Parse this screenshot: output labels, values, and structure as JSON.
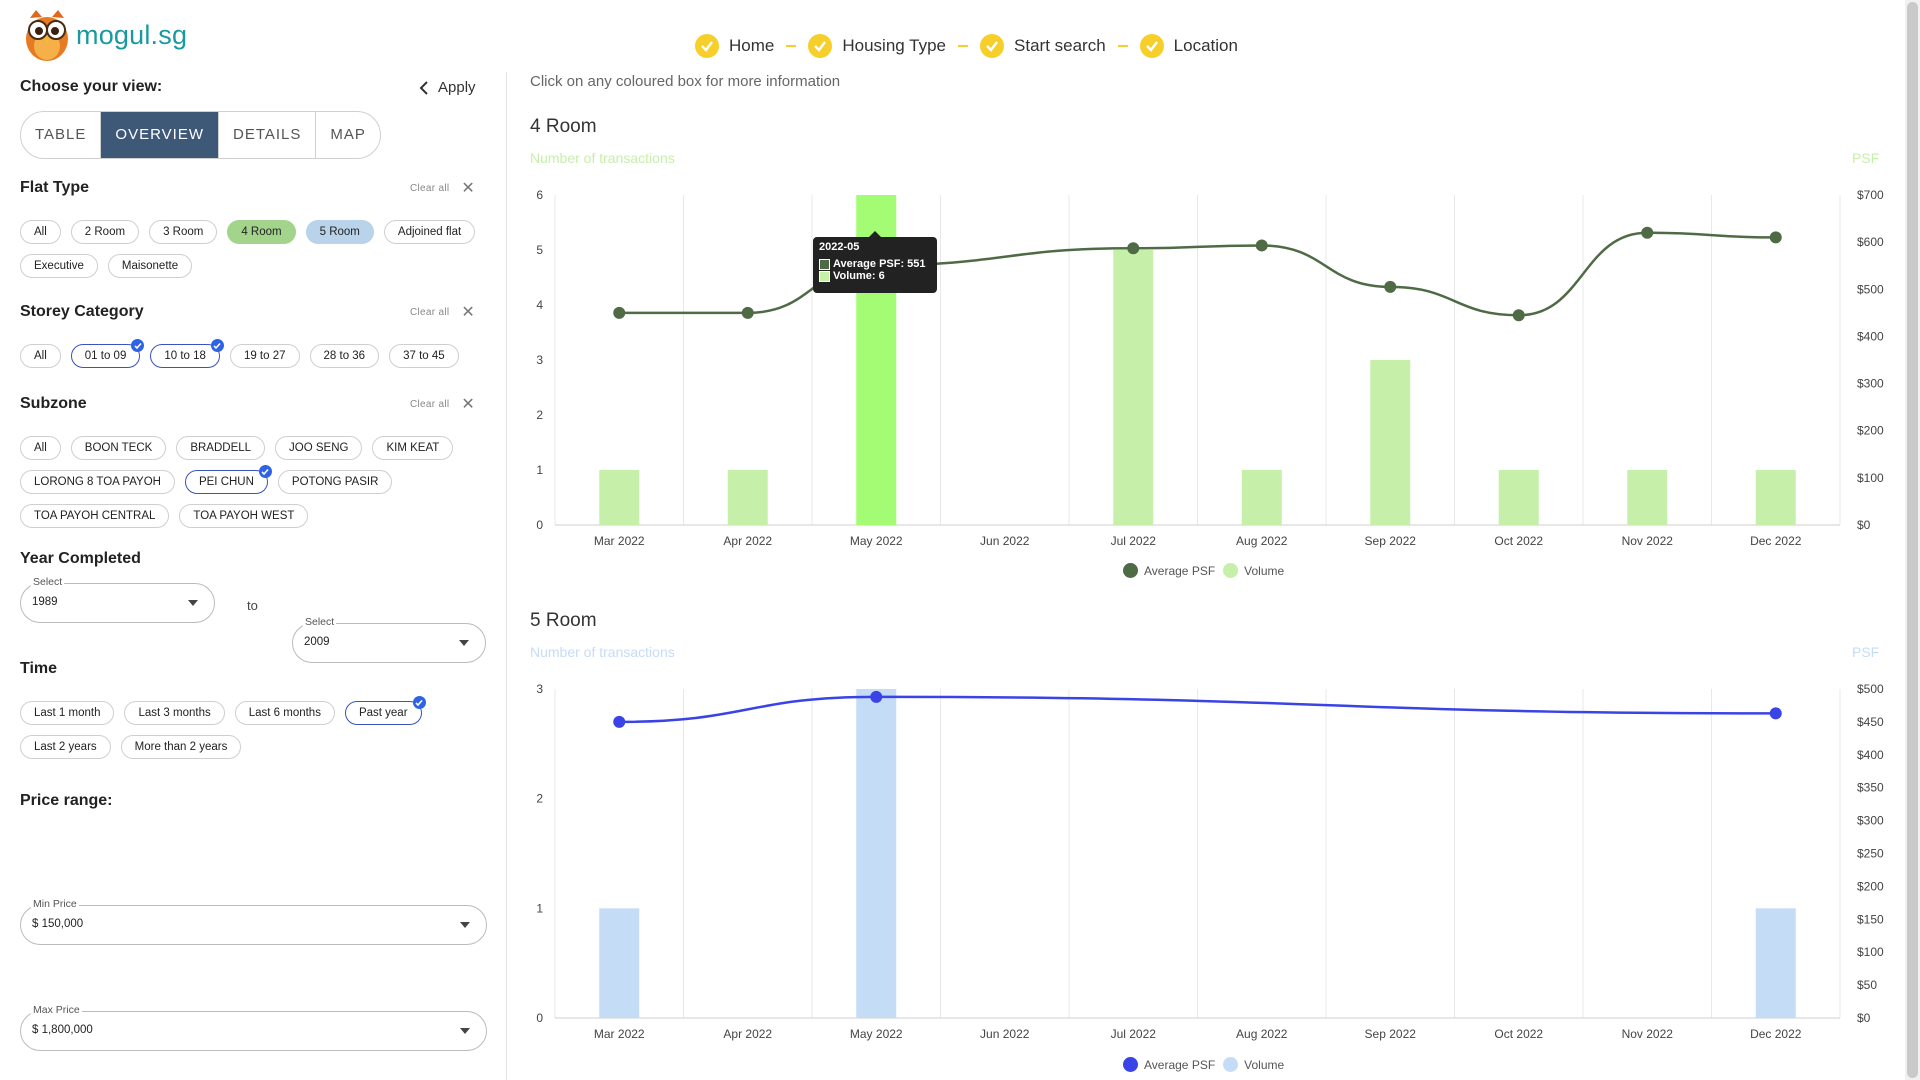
{
  "brand": {
    "name": "mogul.sg"
  },
  "steps": [
    "Home",
    "Housing Type",
    "Start search",
    "Location"
  ],
  "sidebar": {
    "choose_view": "Choose your view:",
    "apply": "Apply",
    "view_tabs": [
      "TABLE",
      "OVERVIEW",
      "DETAILS",
      "MAP"
    ],
    "clear_all": "Clear all",
    "flat_type": {
      "title": "Flat Type",
      "chips": [
        "All",
        "2 Room",
        "3 Room",
        "4 Room",
        "5 Room",
        "Adjoined flat",
        "Executive",
        "Maisonette"
      ]
    },
    "storey": {
      "title": "Storey Category",
      "chips": [
        "All",
        "01 to 09",
        "10 to 18",
        "19 to 27",
        "28 to 36",
        "37 to 45"
      ]
    },
    "subzone": {
      "title": "Subzone",
      "chips": [
        "All",
        "BOON TECK",
        "BRADDELL",
        "JOO SENG",
        "KIM KEAT",
        "LORONG 8 TOA PAYOH",
        "PEI CHUN",
        "POTONG PASIR",
        "TOA PAYOH CENTRAL",
        "TOA PAYOH WEST"
      ]
    },
    "year_completed": {
      "title": "Year Completed",
      "select_label": "Select",
      "from": "1989",
      "to_word": "to",
      "to": "2009"
    },
    "time": {
      "title": "Time",
      "chips": [
        "Last 1 month",
        "Last 3 months",
        "Last 6 months",
        "Past year",
        "Last 2 years",
        "More than 2 years"
      ]
    },
    "price": {
      "title": "Price range:",
      "min_label": "Min Price",
      "min": "$ 150,000",
      "max_label": "Max Price",
      "max": "$ 1,800,000"
    }
  },
  "main": {
    "hint": "Click on any coloured box for more information",
    "legend_psf": "Average PSF",
    "legend_volume": "Volume",
    "left_axis_caption": "Number of transactions",
    "right_axis_caption": "PSF",
    "tooltip": {
      "title": "2022-05",
      "psf_line": "Average PSF: 551",
      "vol_line": "Volume: 6"
    }
  },
  "colors": {
    "accent_yellow": "#f7cf2a",
    "room4_line": "#4f6b45",
    "room4_bar": "#c6efaa",
    "room4_bar_hover": "#a4fb74",
    "room5_line": "#3a43e6",
    "room5_bar": "#c5dcf7",
    "view_active": "#3e5878"
  },
  "chart_data": [
    {
      "type": "bar",
      "title": "4 Room",
      "categories": [
        "Mar 2022",
        "Apr 2022",
        "May 2022",
        "Jun 2022",
        "Jul 2022",
        "Aug 2022",
        "Sep 2022",
        "Oct 2022",
        "Nov 2022",
        "Dec 2022"
      ],
      "series": [
        {
          "name": "Volume",
          "type": "bar",
          "axis": "left",
          "values": [
            1,
            1,
            6,
            0,
            5,
            1,
            3,
            1,
            1,
            1
          ]
        },
        {
          "name": "Average PSF",
          "type": "line",
          "axis": "right",
          "values": [
            450,
            450,
            551,
            null,
            587,
            593,
            505,
            445,
            620,
            610
          ]
        }
      ],
      "ylabel": "Number of transactions",
      "y2label": "PSF",
      "ylim": [
        0,
        6
      ],
      "y_ticks": [
        0,
        1,
        2,
        3,
        4,
        5,
        6
      ],
      "y2lim": [
        0,
        700
      ],
      "y2_ticks": [
        "$0",
        "$100",
        "$200",
        "$300",
        "$400",
        "$500",
        "$600",
        "$700"
      ],
      "legend": "bottom",
      "grid": true
    },
    {
      "type": "bar",
      "title": "5 Room",
      "categories": [
        "Mar 2022",
        "Apr 2022",
        "May 2022",
        "Jun 2022",
        "Jul 2022",
        "Aug 2022",
        "Sep 2022",
        "Oct 2022",
        "Nov 2022",
        "Dec 2022"
      ],
      "series": [
        {
          "name": "Volume",
          "type": "bar",
          "axis": "left",
          "values": [
            1,
            0,
            3,
            0,
            0,
            0,
            0,
            0,
            0,
            1
          ]
        },
        {
          "name": "Average PSF",
          "type": "line",
          "axis": "right",
          "values": [
            450,
            null,
            488,
            null,
            null,
            null,
            null,
            null,
            null,
            463
          ]
        }
      ],
      "ylabel": "Number of transactions",
      "y2label": "PSF",
      "ylim": [
        0,
        3
      ],
      "y_ticks": [
        0,
        1,
        2,
        3
      ],
      "y2lim": [
        0,
        500
      ],
      "y2_ticks": [
        "$0",
        "$50",
        "$100",
        "$150",
        "$200",
        "$250",
        "$300",
        "$350",
        "$400",
        "$450",
        "$500"
      ],
      "legend": "bottom",
      "grid": true
    }
  ]
}
